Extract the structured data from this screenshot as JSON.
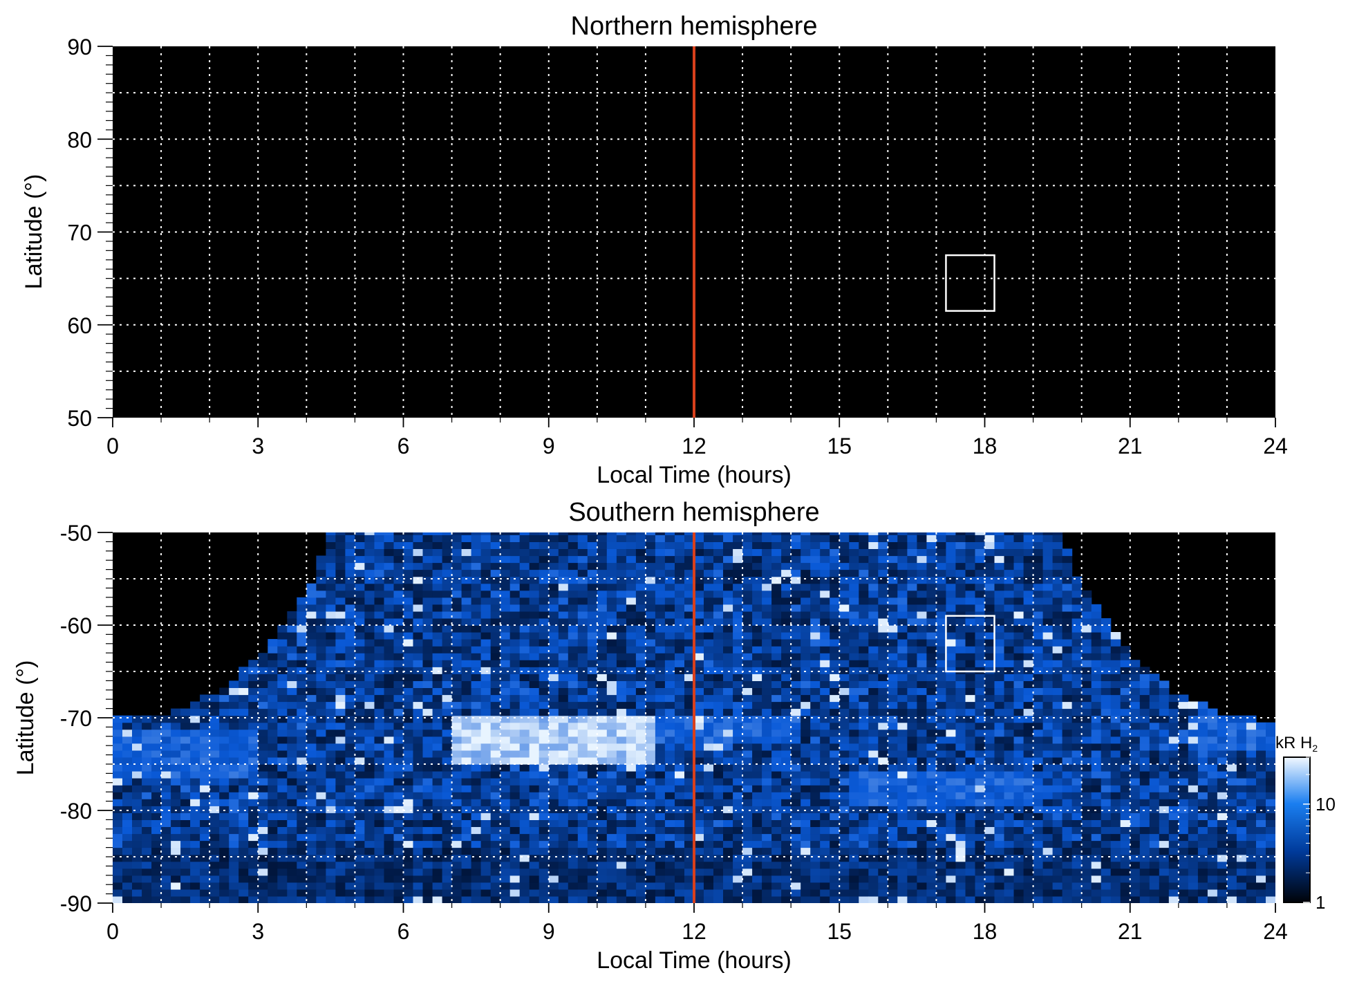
{
  "colors": {
    "background": "#000000",
    "grid": "#ffffff",
    "noon_line": "#d8401c",
    "marker_box": "#ffffff",
    "emission_low": "#001030",
    "emission_mid": "#0a5ad8",
    "emission_high": "#e8f4ff"
  },
  "chart_data": [
    {
      "type": "heatmap",
      "title": "Northern hemisphere",
      "xlabel": "Local Time (hours)",
      "ylabel": "Latitude (°)",
      "xlim": [
        0,
        24
      ],
      "ylim": [
        50,
        90
      ],
      "x_ticks": [
        0,
        3,
        6,
        9,
        12,
        15,
        18,
        21,
        24
      ],
      "x_tick_labels": [
        "0",
        "3",
        "6",
        "9",
        "12",
        "15",
        "18",
        "21",
        "24"
      ],
      "y_ticks": [
        50,
        60,
        70,
        80,
        90
      ],
      "y_tick_labels": [
        "50",
        "60",
        "70",
        "80",
        "90"
      ],
      "grid": true,
      "grid_x_step_hours": 1,
      "grid_y_step_deg": 5,
      "reference_line_x": 12,
      "box": {
        "x": [
          17.2,
          18.2
        ],
        "y": [
          61.5,
          67.5
        ]
      },
      "coverage": "none"
    },
    {
      "type": "heatmap",
      "title": "Southern hemisphere",
      "xlabel": "Local Time (hours)",
      "ylabel": "Latitude (°)",
      "xlim": [
        0,
        24
      ],
      "ylim": [
        -90,
        -50
      ],
      "x_ticks": [
        0,
        3,
        6,
        9,
        12,
        15,
        18,
        21,
        24
      ],
      "x_tick_labels": [
        "0",
        "3",
        "6",
        "9",
        "12",
        "15",
        "18",
        "21",
        "24"
      ],
      "y_ticks": [
        -90,
        -80,
        -70,
        -60,
        -50
      ],
      "y_tick_labels": [
        "-90",
        "-80",
        "-70",
        "-60",
        "-50"
      ],
      "grid": true,
      "grid_x_step_hours": 1,
      "grid_y_step_deg": 5,
      "reference_line_x": 12,
      "box": {
        "x": [
          17.2,
          18.2
        ],
        "y": [
          -65,
          -59
        ]
      },
      "coverage_boundary": [
        [
          0,
          -70.5
        ],
        [
          1,
          -70
        ],
        [
          2,
          -68
        ],
        [
          3,
          -64
        ],
        [
          4,
          -57
        ],
        [
          4.5,
          -50
        ],
        [
          19.5,
          -50
        ],
        [
          20,
          -56
        ],
        [
          21,
          -63.5
        ],
        [
          22,
          -68
        ],
        [
          23,
          -70
        ],
        [
          24,
          -70.8
        ]
      ],
      "auroral_features": [
        {
          "lt": [
            7,
            11
          ],
          "lat": [
            -75,
            -70.5
          ],
          "intensity": "high"
        },
        {
          "lt": [
            11,
            14
          ],
          "lat": [
            -73,
            -70.5
          ],
          "intensity": "medium"
        },
        {
          "lt": [
            15,
            19
          ],
          "lat": [
            -80,
            -76
          ],
          "intensity": "medium"
        },
        {
          "lt": [
            0,
            3
          ],
          "lat": [
            -77,
            -72
          ],
          "intensity": "medium"
        },
        {
          "lt": [
            22,
            24
          ],
          "lat": [
            -74,
            -70
          ],
          "intensity": "medium"
        }
      ],
      "colorbar": {
        "unit_label": "kR H",
        "unit_subscript": "2",
        "scale": "log",
        "range": [
          1,
          30
        ],
        "ticks": [
          1,
          10
        ],
        "tick_labels": [
          "1",
          "10"
        ]
      }
    }
  ]
}
